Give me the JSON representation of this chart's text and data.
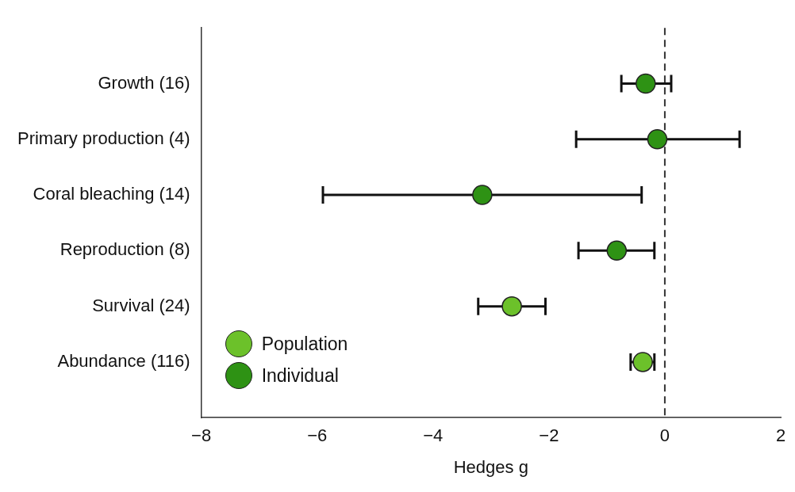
{
  "chart_data": {
    "type": "scatter",
    "orientation": "horizontal",
    "xlabel": "Hedges g",
    "categories": [
      "Growth (16)",
      "Primary production (4)",
      "Coral bleaching (14)",
      "Reproduction (8)",
      "Survival (24)",
      "Abundance (116)"
    ],
    "series": [
      {
        "name": "Population",
        "color": "#6cc12a",
        "values": [
          null,
          null,
          null,
          null,
          -2.64,
          -0.38
        ],
        "errors": [
          null,
          null,
          null,
          null,
          [
            -3.22,
            -2.06
          ],
          [
            -0.59,
            -0.18
          ]
        ]
      },
      {
        "name": "Individual",
        "color": "#2e9214",
        "values": [
          -0.33,
          -0.13,
          -3.15,
          -0.83,
          null,
          null
        ],
        "errors": [
          [
            -0.75,
            0.11
          ],
          [
            -1.53,
            1.29
          ],
          [
            -5.9,
            -0.4
          ],
          [
            -1.49,
            -0.18
          ],
          null,
          null
        ]
      }
    ],
    "xlim": [
      -8,
      2
    ],
    "xticks": [
      -8,
      -6,
      -4,
      -2,
      0,
      2
    ],
    "ref_lines": [
      {
        "axis": "x",
        "value": 0,
        "line_style": "dashed",
        "color": "#333333"
      }
    ],
    "legend": "bottom left",
    "marker": "circle",
    "grid": false
  }
}
